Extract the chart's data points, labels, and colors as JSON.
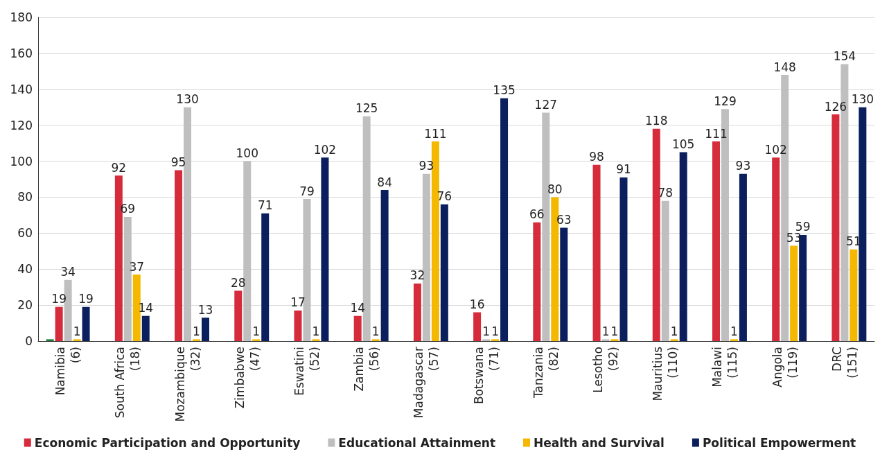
{
  "chart_data": {
    "type": "bar",
    "categories": [
      "Namibia\n(6)",
      "South Africa\n(18)",
      "Mozambique\n(32)",
      "Zimbabwe\n(47)",
      "Eswatini\n(52)",
      "Zambia\n(56)",
      "Madagascar\n(57)",
      "Botswana\n(71)",
      "Tanzania\n(82)",
      "Lesotho\n(92)",
      "Mauritius\n(110)",
      "Malawi\n(115)",
      "Angola\n(119)",
      "DRC\n(151)"
    ],
    "series": [
      {
        "color": "#1e7b3c",
        "values": [
          1,
          null,
          null,
          null,
          null,
          null,
          null,
          null,
          null,
          null,
          null,
          null,
          null,
          null
        ]
      },
      {
        "name": "Economic Participation and Opportunity",
        "color": "#d52b3a",
        "values": [
          19,
          92,
          95,
          28,
          17,
          14,
          32,
          16,
          66,
          98,
          118,
          111,
          102,
          126
        ],
        "value_labels": [
          "19",
          "92",
          "95",
          "28",
          "17",
          "14",
          "32",
          "16",
          "66",
          "98",
          "118",
          "111",
          "102",
          "126"
        ]
      },
      {
        "name": "Educational Attainment",
        "color": "#bfbfbf",
        "values": [
          34,
          69,
          130,
          100,
          79,
          125,
          93,
          1,
          127,
          1,
          78,
          129,
          148,
          154
        ],
        "value_labels": [
          "34",
          "69",
          "130",
          "100",
          "79",
          "125",
          "93",
          "1",
          "127",
          "1",
          "78",
          "129",
          "148",
          "154"
        ]
      },
      {
        "name": "Health and Survival",
        "color": "#f4b800",
        "values": [
          1,
          37,
          1,
          1,
          1,
          1,
          111,
          1,
          80,
          1,
          1,
          1,
          53,
          51
        ],
        "value_labels": [
          "1",
          "37",
          "1",
          "1",
          "1",
          "1",
          "111",
          "1",
          "80",
          "1",
          "1",
          "1",
          "53",
          "51"
        ]
      },
      {
        "name": "Political Empowerment",
        "color": "#0b1f5e",
        "values": [
          19,
          14,
          13,
          71,
          102,
          84,
          76,
          135,
          63,
          91,
          105,
          93,
          59,
          130
        ],
        "value_labels": [
          "19",
          "14",
          "13",
          "71",
          "102",
          "84",
          "76",
          "135",
          "63",
          "91",
          "105",
          "93",
          "59",
          "130"
        ]
      }
    ],
    "ylim": [
      0,
      180
    ],
    "yticks": [
      0,
      20,
      40,
      60,
      80,
      100,
      120,
      140,
      160,
      180
    ],
    "grid": "y",
    "legend": "bottom"
  }
}
